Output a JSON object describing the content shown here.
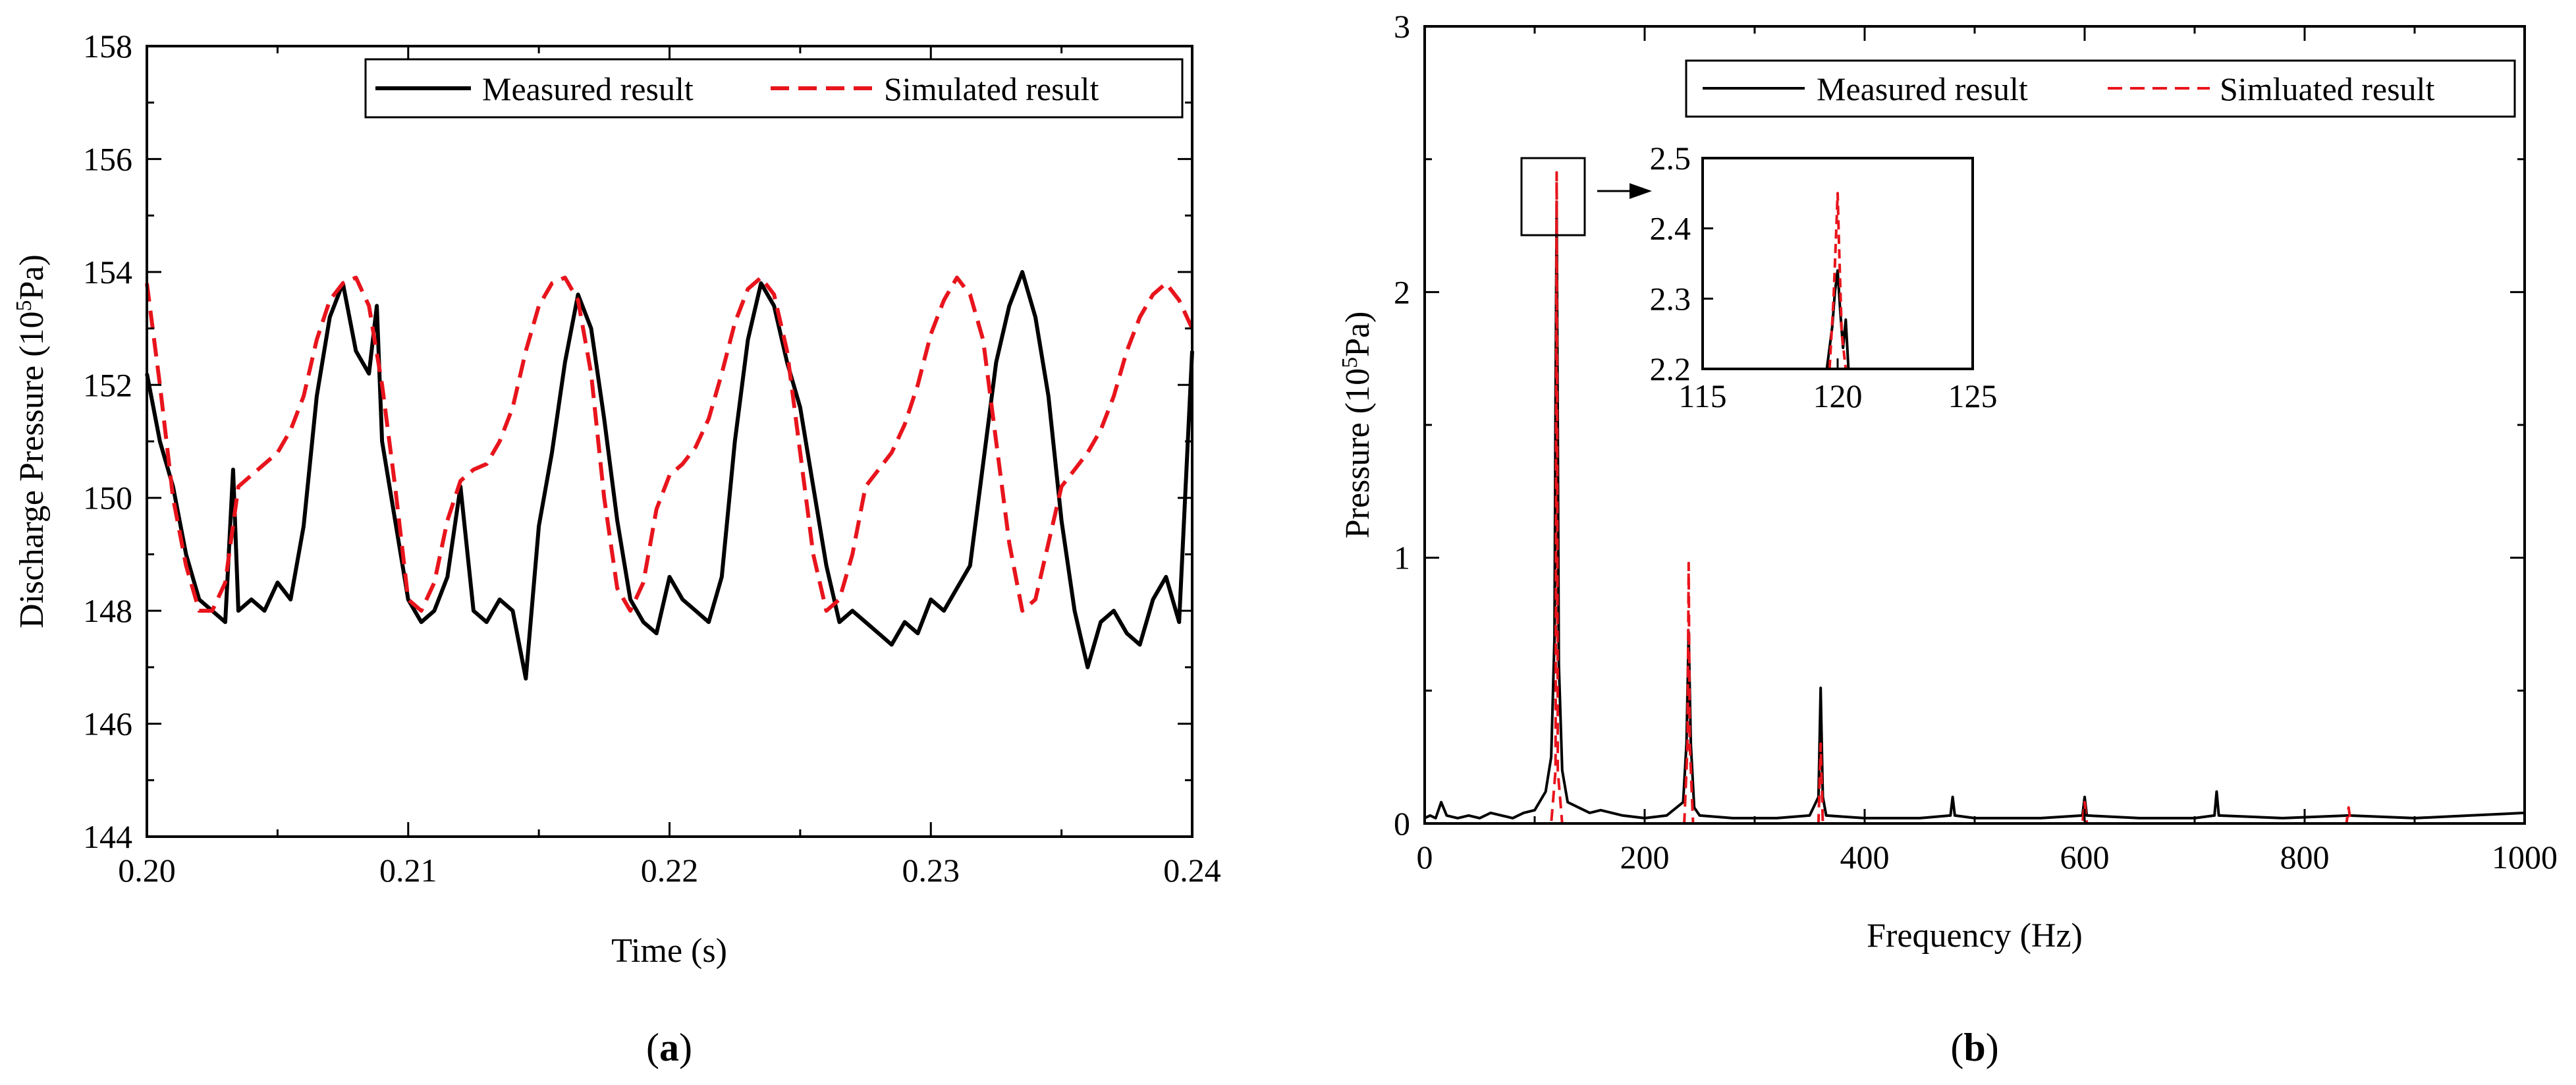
{
  "colors": {
    "measured": "#000000",
    "simulated": "#e8141c"
  },
  "chart_data": [
    {
      "id": "a",
      "type": "line",
      "panel_label": {
        "open": "(",
        "letter": "a",
        "close": ")"
      },
      "xlabel": "Time (s)",
      "ylabel": {
        "prefix": "Discharge Pressure (10",
        "sup": "5",
        "suffix": "Pa)"
      },
      "xlim": [
        0.2,
        0.24
      ],
      "ylim": [
        144,
        158
      ],
      "xticks": [
        0.2,
        0.21,
        0.22,
        0.23,
        0.24
      ],
      "xtick_labels": [
        "0.20",
        "0.21",
        "0.22",
        "0.23",
        "0.24"
      ],
      "yticks": [
        144,
        146,
        148,
        150,
        152,
        154,
        156,
        158
      ],
      "ytick_labels": [
        "144",
        "146",
        "148",
        "150",
        "152",
        "154",
        "156",
        "158"
      ],
      "legend": [
        "Measured result",
        "Simulated result"
      ],
      "series": [
        {
          "name": "Measured result",
          "style": "solid",
          "x": [
            0.2,
            0.2005,
            0.201,
            0.2015,
            0.202,
            0.2025,
            0.203,
            0.2033,
            0.2035,
            0.204,
            0.2045,
            0.205,
            0.2055,
            0.206,
            0.2065,
            0.207,
            0.2075,
            0.208,
            0.2085,
            0.2088,
            0.209,
            0.2095,
            0.21,
            0.2105,
            0.211,
            0.2115,
            0.212,
            0.2125,
            0.213,
            0.2135,
            0.214,
            0.2145,
            0.215,
            0.2155,
            0.216,
            0.2165,
            0.217,
            0.2175,
            0.218,
            0.2185,
            0.219,
            0.2195,
            0.22,
            0.2205,
            0.221,
            0.2215,
            0.222,
            0.2225,
            0.223,
            0.2235,
            0.224,
            0.2245,
            0.225,
            0.2255,
            0.226,
            0.2265,
            0.227,
            0.2275,
            0.228,
            0.2285,
            0.229,
            0.2295,
            0.23,
            0.2305,
            0.231,
            0.2315,
            0.232,
            0.2325,
            0.233,
            0.2335,
            0.234,
            0.2345,
            0.235,
            0.2355,
            0.236,
            0.2365,
            0.237,
            0.2375,
            0.238,
            0.2385,
            0.239,
            0.2395,
            0.24
          ],
          "y": [
            152.2,
            151.0,
            150.2,
            149.0,
            148.2,
            148.0,
            147.8,
            150.5,
            148.0,
            148.2,
            148.0,
            148.5,
            148.2,
            149.5,
            151.8,
            153.2,
            153.8,
            152.6,
            152.2,
            153.4,
            151.0,
            149.6,
            148.2,
            147.8,
            148.0,
            148.6,
            150.2,
            148.0,
            147.8,
            148.2,
            148.0,
            146.8,
            149.5,
            150.8,
            152.4,
            153.6,
            153.0,
            151.4,
            149.6,
            148.2,
            147.8,
            147.6,
            148.6,
            148.2,
            148.0,
            147.8,
            148.6,
            151.0,
            152.8,
            153.8,
            153.4,
            152.4,
            151.6,
            150.2,
            148.8,
            147.8,
            148.0,
            147.8,
            147.6,
            147.4,
            147.8,
            147.6,
            148.2,
            148.0,
            148.4,
            148.8,
            150.6,
            152.4,
            153.4,
            154.0,
            153.2,
            151.8,
            149.6,
            148.0,
            147.0,
            147.8,
            148.0,
            147.6,
            147.4,
            148.2,
            148.6,
            147.8,
            152.6
          ]
        },
        {
          "name": "Simulated result",
          "style": "dashed",
          "x": [
            0.2,
            0.2005,
            0.201,
            0.2015,
            0.202,
            0.2025,
            0.203,
            0.2035,
            0.204,
            0.2045,
            0.205,
            0.2055,
            0.206,
            0.2065,
            0.207,
            0.2075,
            0.208,
            0.2085,
            0.209,
            0.2095,
            0.21,
            0.2105,
            0.211,
            0.2115,
            0.212,
            0.2125,
            0.213,
            0.2135,
            0.214,
            0.2145,
            0.215,
            0.2155,
            0.216,
            0.2165,
            0.217,
            0.2175,
            0.218,
            0.2185,
            0.219,
            0.2195,
            0.22,
            0.2205,
            0.221,
            0.2215,
            0.222,
            0.2225,
            0.223,
            0.2235,
            0.224,
            0.2245,
            0.225,
            0.2255,
            0.226,
            0.2265,
            0.227,
            0.2275,
            0.228,
            0.2285,
            0.229,
            0.2295,
            0.23,
            0.2305,
            0.231,
            0.2315,
            0.232,
            0.2325,
            0.233,
            0.2335,
            0.234,
            0.2345,
            0.235,
            0.2355,
            0.236,
            0.2365,
            0.237,
            0.2375,
            0.238,
            0.2385,
            0.239,
            0.2395,
            0.24
          ],
          "y": [
            153.8,
            152.0,
            150.0,
            148.8,
            148.0,
            148.0,
            148.5,
            150.2,
            150.4,
            150.6,
            150.8,
            151.2,
            151.8,
            152.8,
            153.5,
            153.8,
            153.9,
            153.4,
            152.0,
            150.2,
            148.2,
            148.0,
            148.5,
            149.6,
            150.3,
            150.5,
            150.6,
            151.0,
            151.6,
            152.6,
            153.4,
            153.8,
            153.9,
            153.5,
            152.2,
            150.0,
            148.4,
            148.0,
            148.5,
            149.8,
            150.4,
            150.6,
            150.9,
            151.4,
            152.2,
            153.1,
            153.7,
            153.9,
            153.6,
            152.6,
            150.8,
            149.0,
            148.0,
            148.2,
            149.0,
            150.2,
            150.5,
            150.8,
            151.3,
            152.0,
            152.9,
            153.5,
            153.9,
            153.6,
            152.8,
            151.0,
            149.2,
            148.0,
            148.2,
            149.2,
            150.2,
            150.5,
            150.8,
            151.2,
            151.8,
            152.6,
            153.2,
            153.6,
            153.8,
            153.5,
            153.0
          ]
        }
      ]
    },
    {
      "id": "b",
      "type": "line",
      "panel_label": {
        "open": "(",
        "letter": "b",
        "close": ")"
      },
      "xlabel": "Frequency (Hz)",
      "ylabel": {
        "prefix": "Pressure (10",
        "sup": "5",
        "suffix": "Pa)"
      },
      "xlim": [
        0,
        1000
      ],
      "ylim": [
        0,
        3
      ],
      "xticks": [
        0,
        200,
        400,
        600,
        800,
        1000
      ],
      "xtick_labels": [
        "0",
        "200",
        "400",
        "600",
        "800",
        "1000"
      ],
      "yticks": [
        0,
        1,
        2,
        3
      ],
      "ytick_labels": [
        "0",
        "1",
        "2",
        "3"
      ],
      "legend": [
        "Measured result",
        "Simluated result"
      ],
      "series": [
        {
          "name": "Measured result",
          "style": "solid",
          "x": [
            0,
            5,
            10,
            15,
            20,
            30,
            40,
            50,
            60,
            70,
            80,
            90,
            100,
            110,
            115,
            118,
            119,
            120,
            121,
            122,
            125,
            130,
            140,
            150,
            160,
            180,
            200,
            220,
            235,
            238,
            240,
            242,
            245,
            250,
            280,
            320,
            350,
            358,
            360,
            362,
            365,
            400,
            450,
            478,
            480,
            482,
            500,
            560,
            598,
            600,
            602,
            650,
            700,
            718,
            720,
            722,
            780,
            840,
            900,
            950,
            1000
          ],
          "y": [
            0.02,
            0.03,
            0.02,
            0.08,
            0.03,
            0.02,
            0.03,
            0.02,
            0.04,
            0.03,
            0.02,
            0.04,
            0.05,
            0.12,
            0.25,
            0.7,
            1.6,
            2.34,
            1.5,
            0.6,
            0.2,
            0.08,
            0.06,
            0.04,
            0.05,
            0.03,
            0.02,
            0.03,
            0.08,
            0.3,
            0.72,
            0.3,
            0.06,
            0.03,
            0.02,
            0.02,
            0.03,
            0.1,
            0.51,
            0.1,
            0.03,
            0.02,
            0.02,
            0.03,
            0.1,
            0.03,
            0.02,
            0.02,
            0.03,
            0.1,
            0.03,
            0.02,
            0.02,
            0.03,
            0.12,
            0.03,
            0.02,
            0.03,
            0.02,
            0.03,
            0.04
          ]
        },
        {
          "name": "Simluated result",
          "style": "dashed",
          "x": [
            0,
            100,
            115,
            119,
            120,
            121,
            125,
            200,
            236,
            239,
            240,
            241,
            244,
            350,
            358,
            360,
            362,
            400,
            598,
            600,
            602,
            700,
            838,
            840,
            842,
            1000
          ],
          "y": [
            0,
            0,
            0,
            0.2,
            2.45,
            0.2,
            0,
            0,
            0,
            0.3,
            0.98,
            0.3,
            0,
            0,
            0,
            0.3,
            0,
            0,
            0,
            0.08,
            0,
            0,
            0,
            0.06,
            0,
            0
          ]
        }
      ],
      "inset": {
        "xlim": [
          115,
          125
        ],
        "ylim": [
          2.2,
          2.5
        ],
        "xticks": [
          115,
          120,
          125
        ],
        "xtick_labels": [
          "115",
          "120",
          "125"
        ],
        "yticks": [
          2.2,
          2.3,
          2.4,
          2.5
        ],
        "ytick_labels": [
          "2.2",
          "2.3",
          "2.4",
          "2.5"
        ],
        "series": [
          {
            "name": "Measured result",
            "x": [
              119.6,
              119.8,
              119.9,
              120.0,
              120.1,
              120.2,
              120.3,
              120.4
            ],
            "y": [
              2.2,
              2.26,
              2.31,
              2.34,
              2.28,
              2.23,
              2.27,
              2.2
            ]
          },
          {
            "name": "Simluated result",
            "x": [
              119.7,
              119.85,
              119.95,
              120.0,
              120.05,
              120.15,
              120.3
            ],
            "y": [
              2.2,
              2.3,
              2.4,
              2.45,
              2.38,
              2.25,
              2.2
            ]
          }
        ]
      }
    }
  ]
}
